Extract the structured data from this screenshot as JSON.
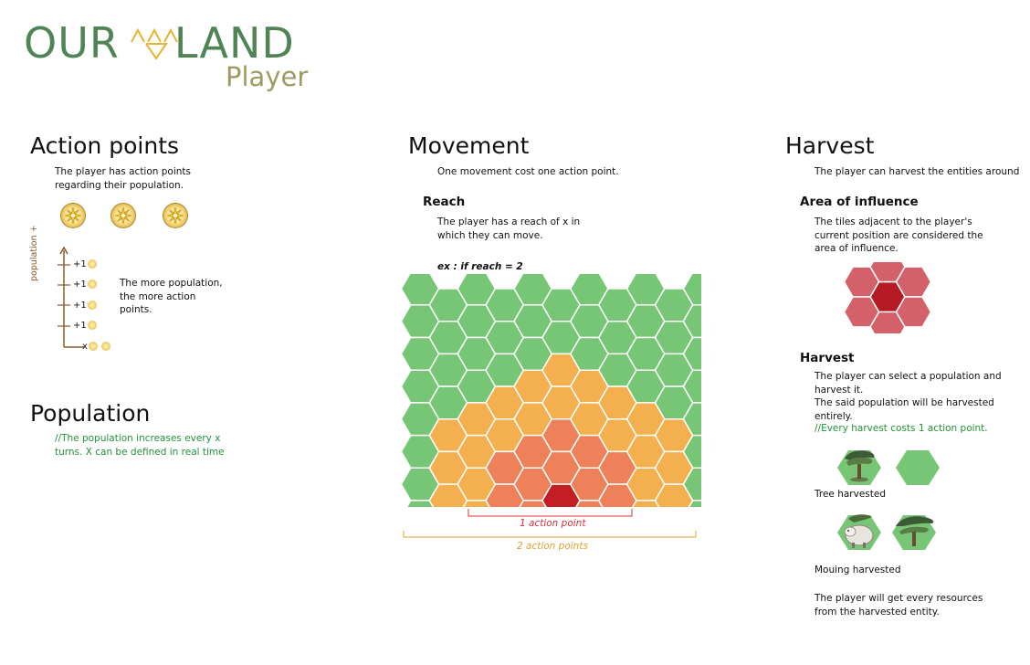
{
  "logo": {
    "word_left": "OUR",
    "word_right": "LAND",
    "subtitle": "Player"
  },
  "action_points": {
    "title": "Action points",
    "desc": "The player has action points regarding their population.",
    "graph": {
      "axis_label": "population +",
      "ticks": [
        "+1",
        "+1",
        "+1",
        "+1"
      ],
      "x_label": "x"
    },
    "more_text": "The more population, the more action points."
  },
  "population": {
    "title": "Population",
    "note": "//The population increases every x turns. X can be defined in real time"
  },
  "movement": {
    "title": "Movement",
    "desc": "One movement cost one action point.",
    "reach_title": "Reach",
    "reach_desc": "The player has a reach of x in which they can move.",
    "example": "ex : if reach = 2",
    "label_1": "1 action point",
    "label_2": "2 action points"
  },
  "harvest": {
    "title": "Harvest",
    "desc": "The player can harvest the entities around",
    "aoi_title": "Area of influence",
    "aoi_desc": "The tiles adjacent to the player's current position are considered the area of influence.",
    "harvest_title": "Harvest",
    "harvest_desc_1": "The player can select a population and harvest it.",
    "harvest_desc_2": "The said population will be harvested entirely.",
    "harvest_note": "//Every harvest costs 1 action point.",
    "tree_caption": "Tree harvested",
    "mouing_caption": "Mouing harvested",
    "resources_text": "The player will get every resources from the harvested entity."
  },
  "colors": {
    "logo_green": "#4f8554",
    "logo_olive": "#9c9b62",
    "logo_gold": "#e8b232",
    "hex_green": "#77c676",
    "hex_orange": "#f4b04e",
    "hex_salmon": "#ee815a",
    "hex_red": "#c21e24",
    "aoi_pink": "#d4616a",
    "aoi_red": "#b51a25",
    "note_green": "#23923a"
  }
}
